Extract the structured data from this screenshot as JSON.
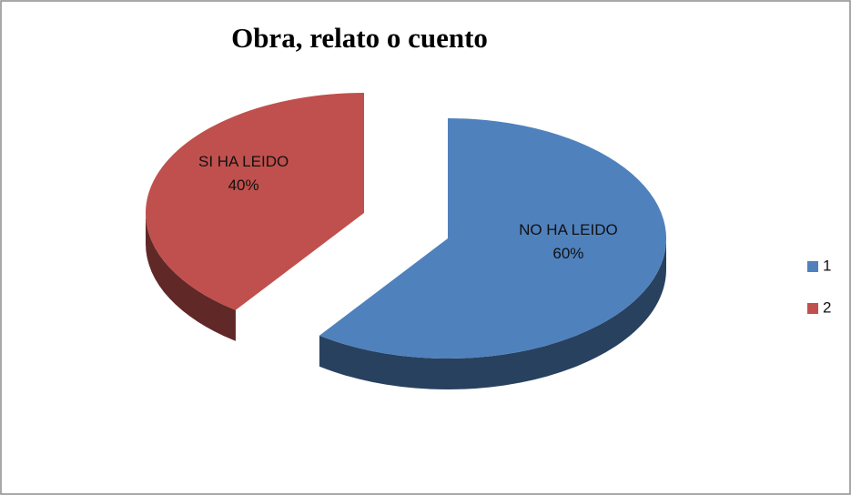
{
  "chart_data": {
    "type": "pie",
    "title": "Obra, relato o cuento",
    "categories": [
      "1",
      "2"
    ],
    "labels": [
      "NO HA LEIDO",
      "SI HA LEIDO"
    ],
    "values": [
      60,
      40
    ],
    "value_labels": [
      "60%",
      "40%"
    ],
    "colors": [
      "#4f81bd",
      "#c0504d"
    ],
    "explode": [
      false,
      true
    ],
    "legend": "right"
  }
}
